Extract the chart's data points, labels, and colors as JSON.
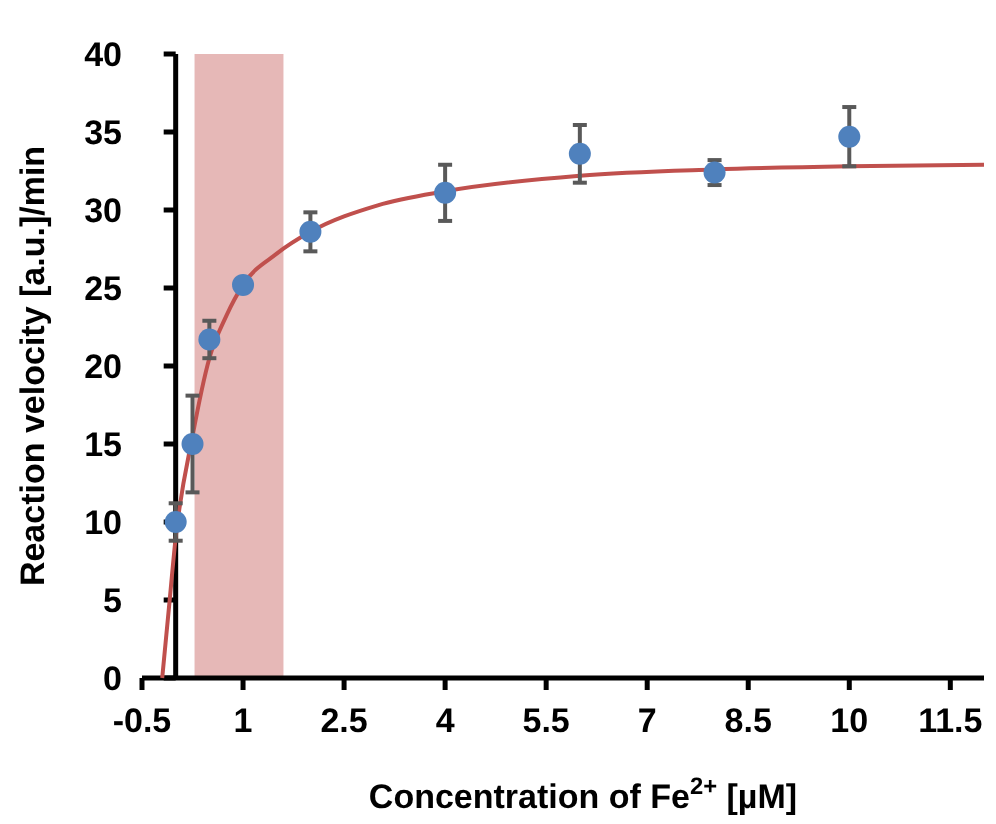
{
  "chart_data": {
    "type": "scatter",
    "xlabel": "Concentration of Fe$^{2+}$ [µM]",
    "ylabel": "Reaction velocity [a.u.]/min",
    "xlim": [
      -0.5,
      12
    ],
    "xticks": [
      -0.5,
      1,
      2.5,
      4,
      5.5,
      7,
      8.5,
      10,
      11.5
    ],
    "ylim": [
      0,
      40
    ],
    "yticks": [
      0,
      5,
      10,
      15,
      20,
      25,
      30,
      35,
      40
    ],
    "grid": false,
    "bands": [
      {
        "axis": "x",
        "from": 0.28,
        "to": 1.6,
        "color": "#e6b8b7"
      }
    ],
    "series": [
      {
        "type": "line",
        "color": "#c0504d",
        "marker": "none",
        "line_style": "solid",
        "x": [
          -0.2,
          -0.1,
          0,
          0.25,
          0.5,
          0.75,
          1,
          1.5,
          2,
          3,
          4,
          6,
          8,
          10,
          12
        ],
        "values": [
          0,
          4.5,
          9,
          15.5,
          20.5,
          23.2,
          25.2,
          27.2,
          28.6,
          30.3,
          31.2,
          32.2,
          32.6,
          32.8,
          32.9
        ]
      },
      {
        "color": "#4f81bd",
        "marker": "circle",
        "x": [
          0,
          0.25,
          0.5,
          1,
          2,
          4,
          6,
          8,
          10
        ],
        "values": [
          10,
          15,
          21.7,
          25.2,
          28.6,
          31.1,
          33.6,
          32.4,
          34.7
        ],
        "errors": [
          1.2,
          3.1,
          1.2,
          null,
          1.25,
          1.8,
          1.85,
          0.8,
          1.9
        ]
      }
    ]
  }
}
